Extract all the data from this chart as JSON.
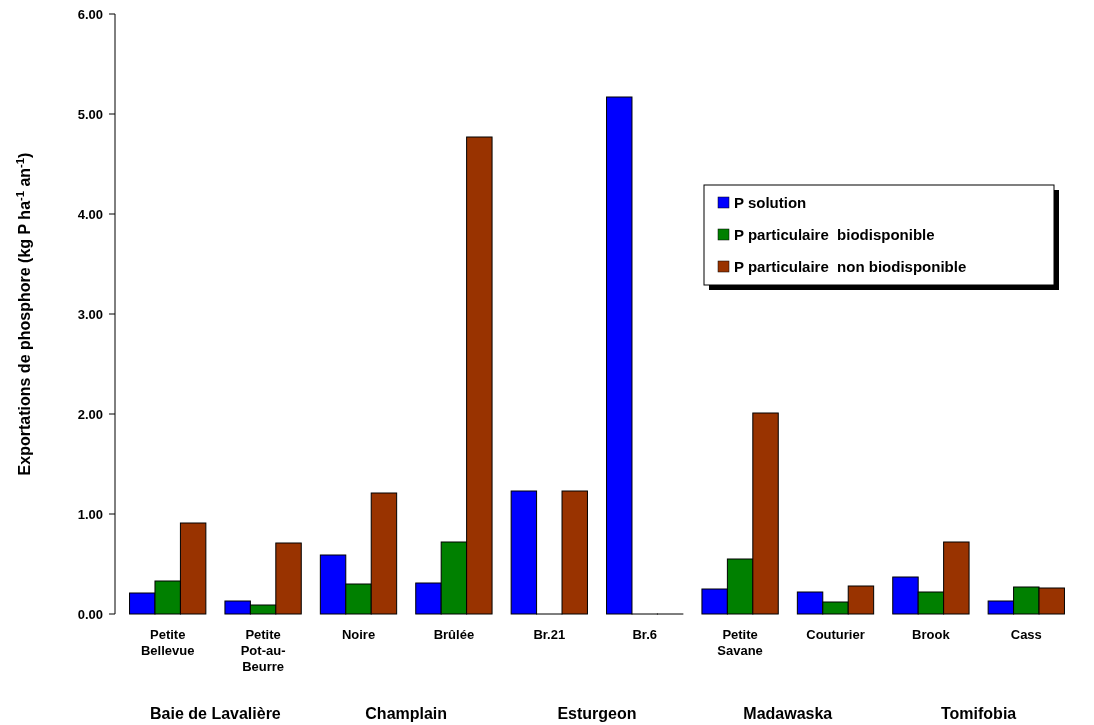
{
  "chart_data": {
    "type": "bar",
    "ylabel": "Exportations de phosphore (kg P ha$^{-1}$ an$^{-1}$)",
    "categories": [
      "Petite Bellevue",
      "Petite Pot-au-Beurre",
      "Noire",
      "Brûlée",
      "Br.21",
      "Br.6",
      "Petite Savane",
      "Couturier",
      "Brook",
      "Cass"
    ],
    "series": [
      {
        "name": "P solution",
        "color": "#0000ff",
        "values": [
          0.21,
          0.13,
          0.59,
          0.31,
          1.23,
          5.17,
          0.25,
          0.22,
          0.37,
          0.13
        ]
      },
      {
        "name": "P particulaire  biodisponible",
        "color": "#008000",
        "values": [
          0.33,
          0.09,
          0.3,
          0.72,
          0,
          0,
          0.55,
          0.12,
          0.22,
          0.27
        ]
      },
      {
        "name": "P particulaire  non biodisponible",
        "color": "#993300",
        "values": [
          0.91,
          0.71,
          1.21,
          4.77,
          1.23,
          0,
          2.01,
          0.28,
          0.72,
          0.26
        ]
      }
    ],
    "ylim": [
      0,
      6
    ],
    "yticks": [
      {
        "value": 0,
        "label": "0.00"
      },
      {
        "value": 1,
        "label": "1.00"
      },
      {
        "value": 2,
        "label": "2.00"
      },
      {
        "value": 3,
        "label": "3.00"
      },
      {
        "value": 4,
        "label": "4.00"
      },
      {
        "value": 5,
        "label": "5.00"
      },
      {
        "value": 6,
        "label": "6.00"
      }
    ],
    "legend": "top right",
    "annotations": [
      "Baie de Lavalière",
      "Champlain",
      "Esturgeon",
      "Madawaska",
      "Tomifobia"
    ]
  }
}
